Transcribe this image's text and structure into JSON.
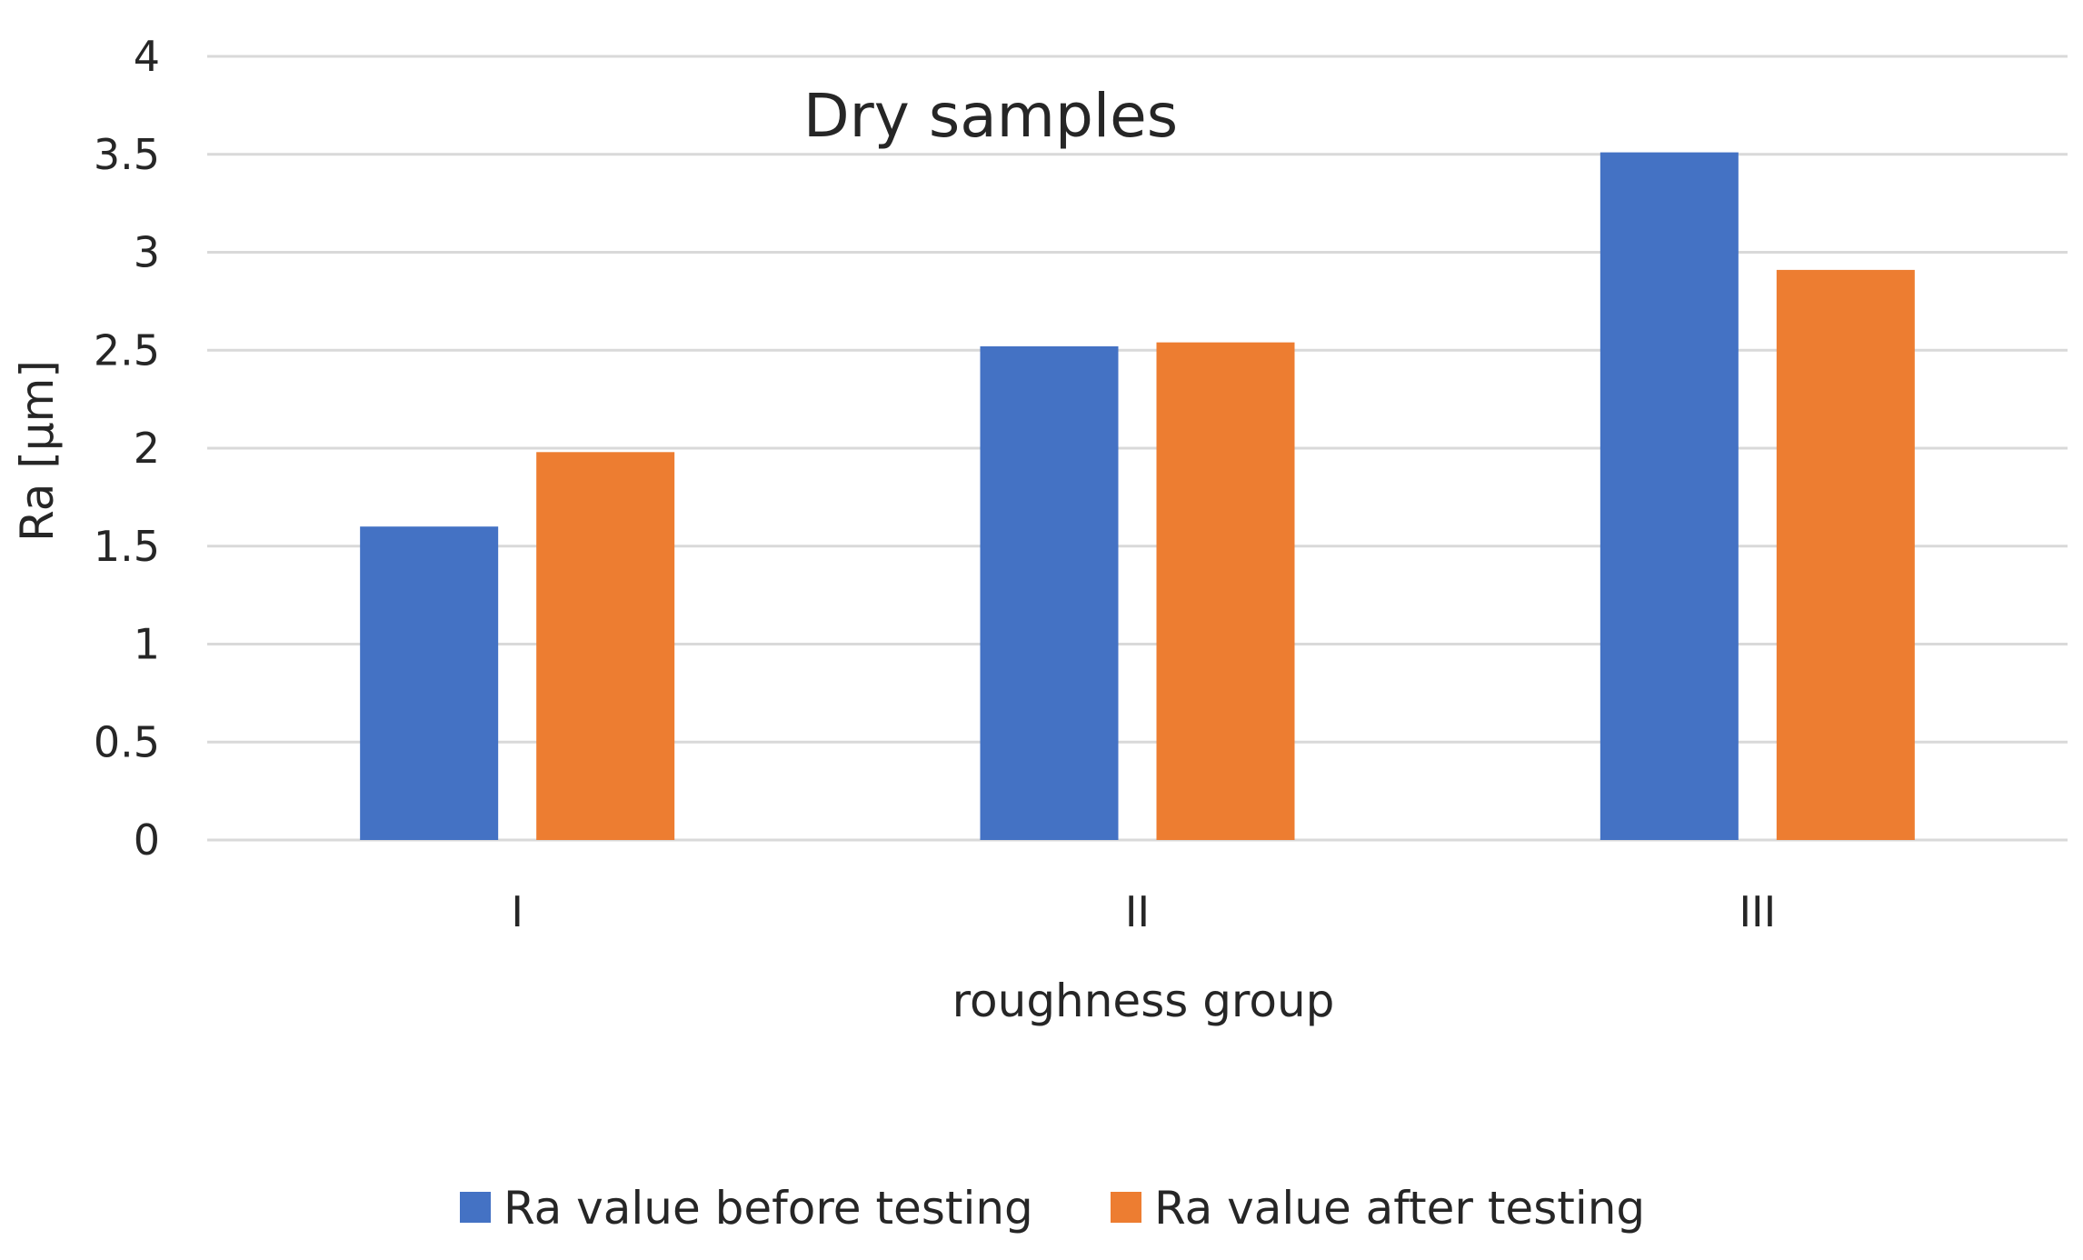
{
  "chart_data": {
    "type": "bar",
    "title": "Dry samples",
    "xlabel": "roughness group",
    "ylabel": "Ra [µm]",
    "categories": [
      "I",
      "II",
      "III"
    ],
    "series": [
      {
        "name": "Ra value before testing",
        "values": [
          1.6,
          2.52,
          3.51
        ],
        "color": "#4472C4"
      },
      {
        "name": "Ra value after testing",
        "values": [
          1.98,
          2.54,
          2.91
        ],
        "color": "#ED7D31"
      }
    ],
    "ylim": [
      0,
      4
    ],
    "yticks": [
      "0",
      "0.5",
      "1",
      "1.5",
      "2",
      "2.5",
      "3",
      "3.5",
      "4"
    ],
    "grid": true,
    "legend": "bottom-center",
    "gridColor": "#D9D9D9"
  }
}
